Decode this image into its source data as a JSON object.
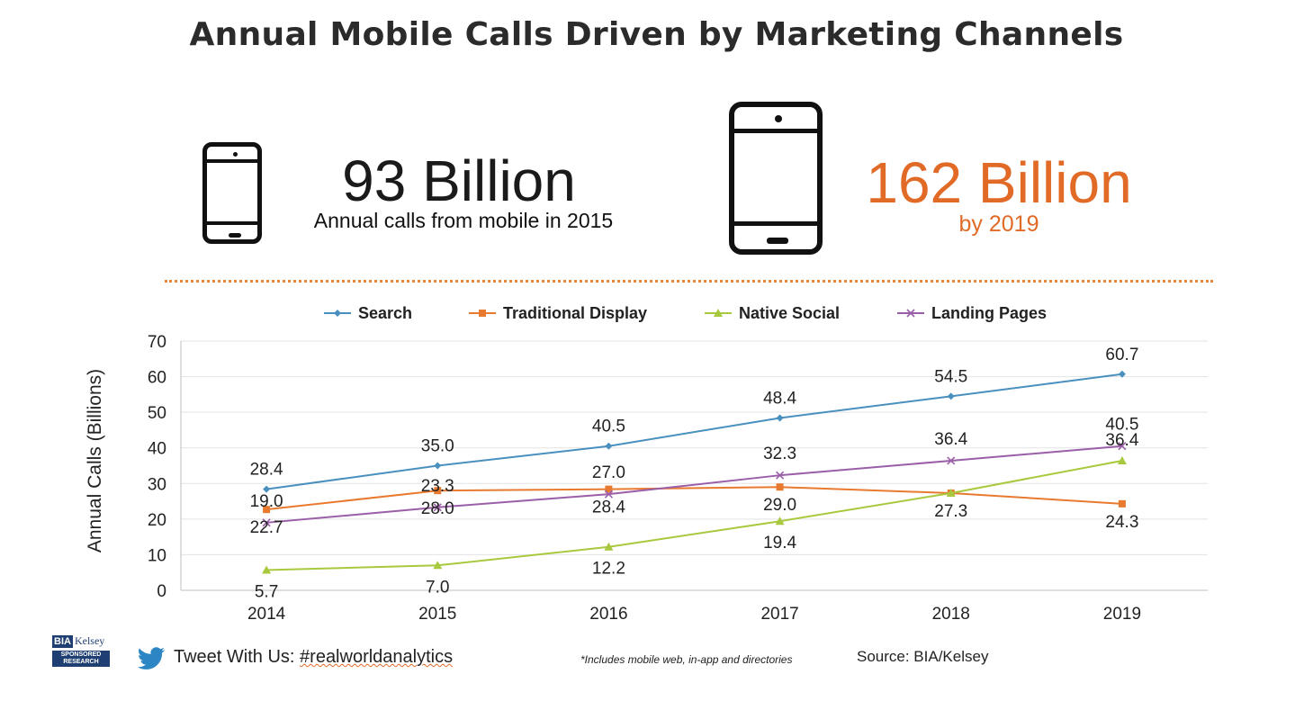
{
  "title": "Annual Mobile Calls Driven by Marketing Channels",
  "stats": {
    "current_value": "93 Billion",
    "current_caption": "Annual calls from mobile in 2015",
    "forecast_value": "162 Billion",
    "forecast_caption": "by 2019"
  },
  "footer": {
    "tweet_prefix": "Tweet With Us: ",
    "tweet_hashtag": "#realworldanalytics",
    "note": "*Includes mobile web, in-app and directories",
    "source": "Source: BIA/Kelsey",
    "logo_line1": "BIA",
    "logo_line2": "Kelsey",
    "logo_line3": "SPONSORED RESEARCH"
  },
  "colors": {
    "accent": "#e06a26",
    "search": "#4a90bf",
    "traditional_display": "#e87a30",
    "native_social": "#a8c93d",
    "landing_pages": "#9b5ea8"
  },
  "chart_data": {
    "type": "line",
    "title": "",
    "xlabel": "",
    "ylabel": "Annual Calls (Billions)",
    "categories": [
      "2014",
      "2015",
      "2016",
      "2017",
      "2018",
      "2019"
    ],
    "ylim": [
      0,
      70
    ],
    "yticks": [
      0,
      10,
      20,
      30,
      40,
      50,
      60,
      70
    ],
    "grid": true,
    "legend": "top",
    "series": [
      {
        "name": "Search",
        "color": "#4a90bf",
        "marker": "diamond",
        "values": [
          28.4,
          35.0,
          40.5,
          48.4,
          54.5,
          60.7
        ],
        "labels": [
          "28.4",
          "35.0",
          "40.5",
          "48.4",
          "54.5",
          "60.7"
        ]
      },
      {
        "name": "Traditional Display",
        "color": "#e87a30",
        "marker": "square",
        "values": [
          22.7,
          28.0,
          28.4,
          29.0,
          27.3,
          24.3
        ],
        "labels": [
          "22.7",
          "28.0",
          "28.4",
          "29.0",
          "27.3",
          "24.3"
        ]
      },
      {
        "name": "Native Social",
        "color": "#a8c93d",
        "marker": "triangle",
        "values": [
          5.7,
          7.0,
          12.2,
          19.4,
          27.3,
          36.4
        ],
        "labels": [
          "5.7",
          "7.0",
          "12.2",
          "19.4",
          "",
          "36.4"
        ]
      },
      {
        "name": "Landing Pages",
        "color": "#9b5ea8",
        "marker": "x",
        "values": [
          19.0,
          23.3,
          27.0,
          32.3,
          36.4,
          40.5
        ],
        "labels": [
          "19.0",
          "23.3",
          "27.0",
          "32.3",
          "36.4",
          "40.5"
        ]
      }
    ]
  }
}
